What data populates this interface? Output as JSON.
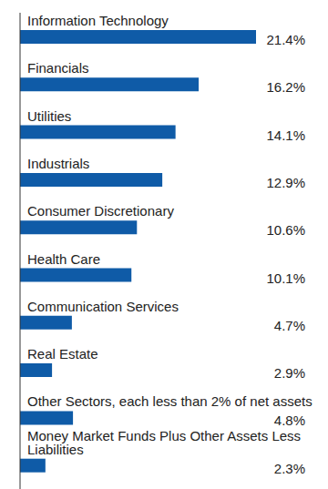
{
  "chart_data": {
    "type": "bar",
    "orientation": "horizontal",
    "categories": [
      "Information Technology",
      "Financials",
      "Utilities",
      "Industrials",
      "Consumer Discretionary",
      "Health Care",
      "Communication Services",
      "Real Estate",
      "Other Sectors, each less than 2% of net assets",
      "Money Market Funds Plus Other Assets Less Liabilities"
    ],
    "values": [
      21.4,
      16.2,
      14.1,
      12.9,
      10.6,
      10.1,
      4.7,
      2.9,
      4.8,
      2.3
    ],
    "value_labels": [
      "21.4%",
      "16.2%",
      "14.1%",
      "12.9%",
      "10.6%",
      "10.1%",
      "4.7%",
      "2.9%",
      "4.8%",
      "2.3%"
    ],
    "color": "#0f5ba7",
    "data_labels": true,
    "tick_labels": false
  }
}
